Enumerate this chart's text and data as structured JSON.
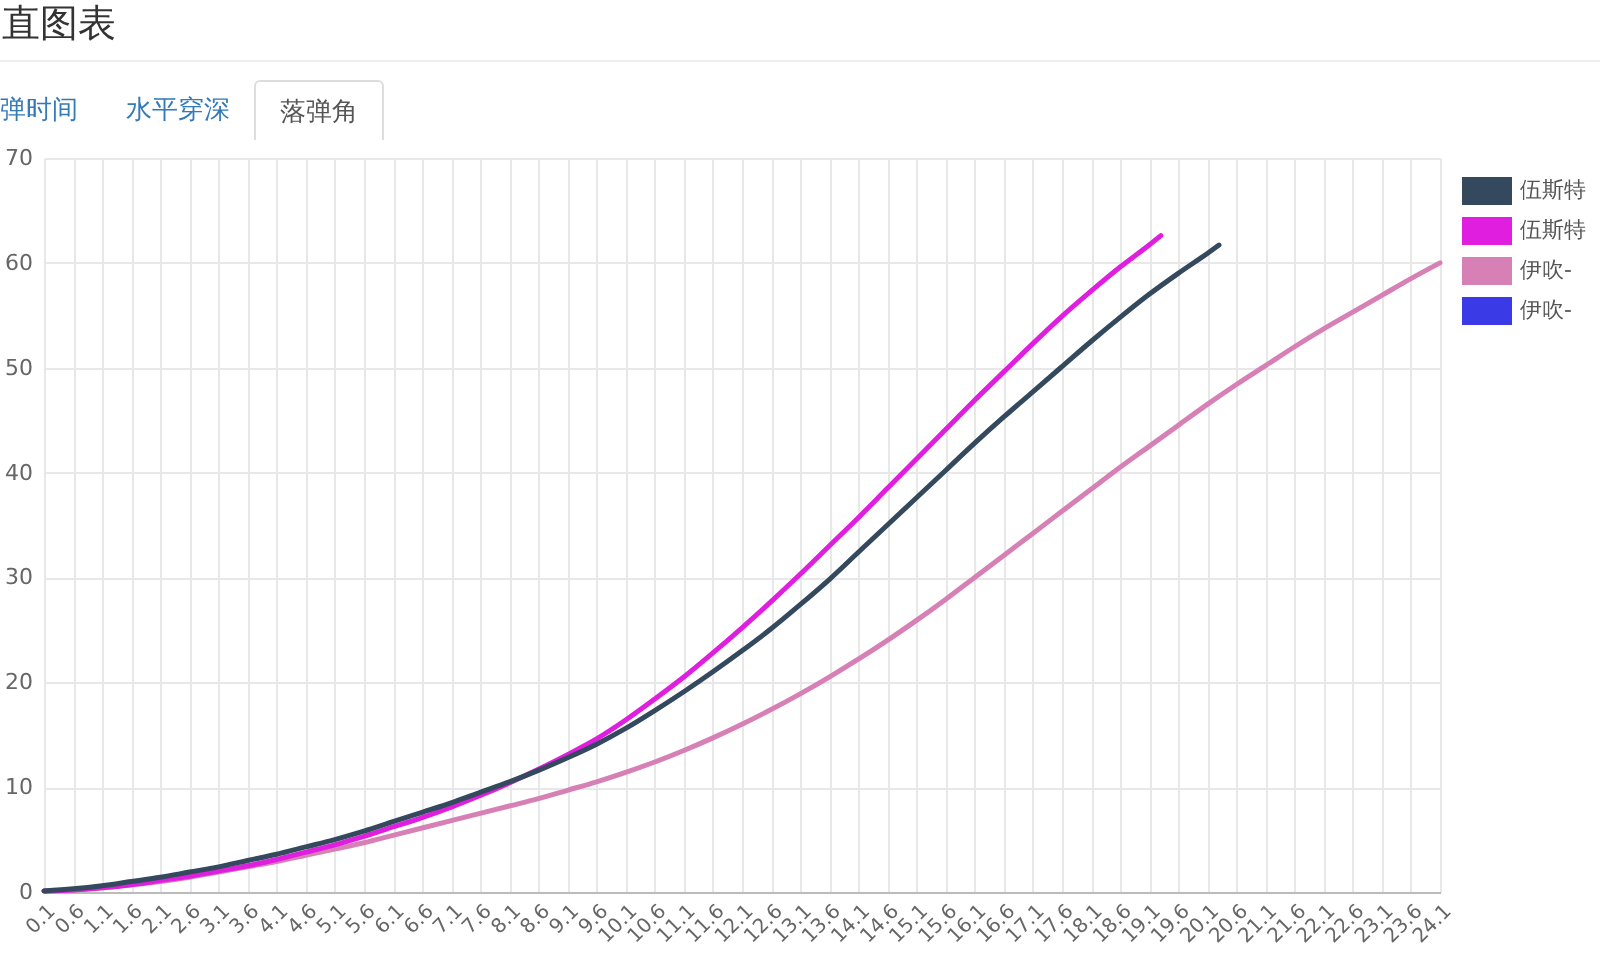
{
  "chart_data": {
    "type": "line",
    "title": "直图表",
    "annotations": [
      "弹时间",
      "水平穿深",
      "落弹角"
    ],
    "series": [
      {
        "name": "伍斯特",
        "color": "#34495e",
        "x": [
          0.1,
          0.6,
          1.1,
          1.6,
          2.1,
          2.6,
          3.1,
          3.6,
          4.1,
          4.6,
          5.1,
          5.6,
          6.1,
          6.6,
          7.1,
          7.6,
          8.1,
          8.6,
          9.1,
          9.6,
          10.1,
          10.6,
          11.1,
          11.6,
          12.1,
          12.6,
          13.1,
          13.6,
          14.1,
          14.6,
          15.1,
          15.6,
          16.1,
          16.6,
          17.1,
          17.6,
          18.1,
          18.6,
          19.1,
          19.6,
          20.1,
          20.3
        ],
        "values": [
          0.1,
          0.3,
          0.6,
          1.0,
          1.4,
          1.9,
          2.4,
          3.0,
          3.6,
          4.3,
          5.0,
          5.8,
          6.7,
          7.6,
          8.5,
          9.5,
          10.5,
          11.6,
          12.8,
          14.1,
          15.6,
          17.3,
          19.1,
          21.0,
          23.0,
          25.1,
          27.4,
          29.8,
          32.4,
          35.0,
          37.6,
          40.2,
          42.8,
          45.3,
          47.7,
          50.1,
          52.5,
          54.8,
          57.0,
          59.0,
          60.9,
          61.7
        ]
      },
      {
        "name": "伍斯特",
        "color": "#e01ee0",
        "x": [
          0.1,
          0.6,
          1.1,
          1.6,
          2.1,
          2.6,
          3.1,
          3.6,
          4.1,
          4.6,
          5.1,
          5.6,
          6.1,
          6.6,
          7.1,
          7.6,
          8.1,
          8.6,
          9.1,
          9.6,
          10.1,
          10.6,
          11.1,
          11.6,
          12.1,
          12.6,
          13.1,
          13.6,
          14.1,
          14.6,
          15.1,
          15.6,
          16.1,
          16.6,
          17.1,
          17.6,
          18.1,
          18.6,
          19.1,
          19.3
        ],
        "values": [
          0.1,
          0.2,
          0.4,
          0.7,
          1.1,
          1.5,
          2.0,
          2.5,
          3.1,
          3.8,
          4.5,
          5.3,
          6.2,
          7.1,
          8.1,
          9.2,
          10.4,
          11.7,
          13.1,
          14.6,
          16.4,
          18.4,
          20.5,
          22.8,
          25.2,
          27.7,
          30.3,
          33.0,
          35.7,
          38.5,
          41.3,
          44.1,
          46.9,
          49.6,
          52.3,
          54.9,
          57.3,
          59.6,
          61.7,
          62.6
        ]
      },
      {
        "name": "伊吹-",
        "color": "#d680b6",
        "x": [
          0.1,
          0.6,
          1.1,
          1.6,
          2.1,
          2.6,
          3.1,
          3.6,
          4.1,
          4.6,
          5.1,
          5.6,
          6.1,
          6.6,
          7.1,
          7.6,
          8.1,
          8.6,
          9.1,
          9.6,
          10.1,
          10.6,
          11.1,
          11.6,
          12.1,
          12.6,
          13.1,
          13.6,
          14.1,
          14.6,
          15.1,
          15.6,
          16.1,
          16.6,
          17.1,
          17.6,
          18.1,
          18.6,
          19.1,
          19.6,
          20.1,
          20.6,
          21.1,
          21.6,
          22.1,
          22.6,
          23.1,
          23.6,
          24.1
        ],
        "values": [
          0.1,
          0.2,
          0.4,
          0.7,
          1.0,
          1.4,
          1.9,
          2.4,
          2.9,
          3.5,
          4.1,
          4.7,
          5.4,
          6.1,
          6.8,
          7.5,
          8.2,
          8.9,
          9.7,
          10.5,
          11.4,
          12.4,
          13.5,
          14.7,
          16.0,
          17.4,
          18.9,
          20.5,
          22.2,
          24.0,
          25.9,
          27.9,
          30.0,
          32.1,
          34.2,
          36.3,
          38.4,
          40.5,
          42.5,
          44.5,
          46.5,
          48.4,
          50.2,
          52.0,
          53.7,
          55.3,
          56.9,
          58.5,
          60.0
        ]
      },
      {
        "name": "伊吹-",
        "color": "#3a3ae6"
      }
    ],
    "xlim": [
      0.1,
      24.1
    ],
    "xticks": [
      0.1,
      0.6,
      1.1,
      1.6,
      2.1,
      2.6,
      3.1,
      3.6,
      4.1,
      4.6,
      5.1,
      5.6,
      6.1,
      6.6,
      7.1,
      7.6,
      8.1,
      8.6,
      9.1,
      9.6,
      10.1,
      10.6,
      11.1,
      11.6,
      12.1,
      12.6,
      13.1,
      13.6,
      14.1,
      14.6,
      15.1,
      15.6,
      16.1,
      16.6,
      17.1,
      17.6,
      18.1,
      18.6,
      19.1,
      19.6,
      20.1,
      20.6,
      21.1,
      21.6,
      22.1,
      22.6,
      23.1,
      23.6,
      24.1
    ],
    "ylim": [
      0,
      70
    ],
    "yticks": [
      0,
      10,
      20,
      30,
      40,
      50,
      60,
      70
    ],
    "grid": true,
    "legend": "right"
  }
}
